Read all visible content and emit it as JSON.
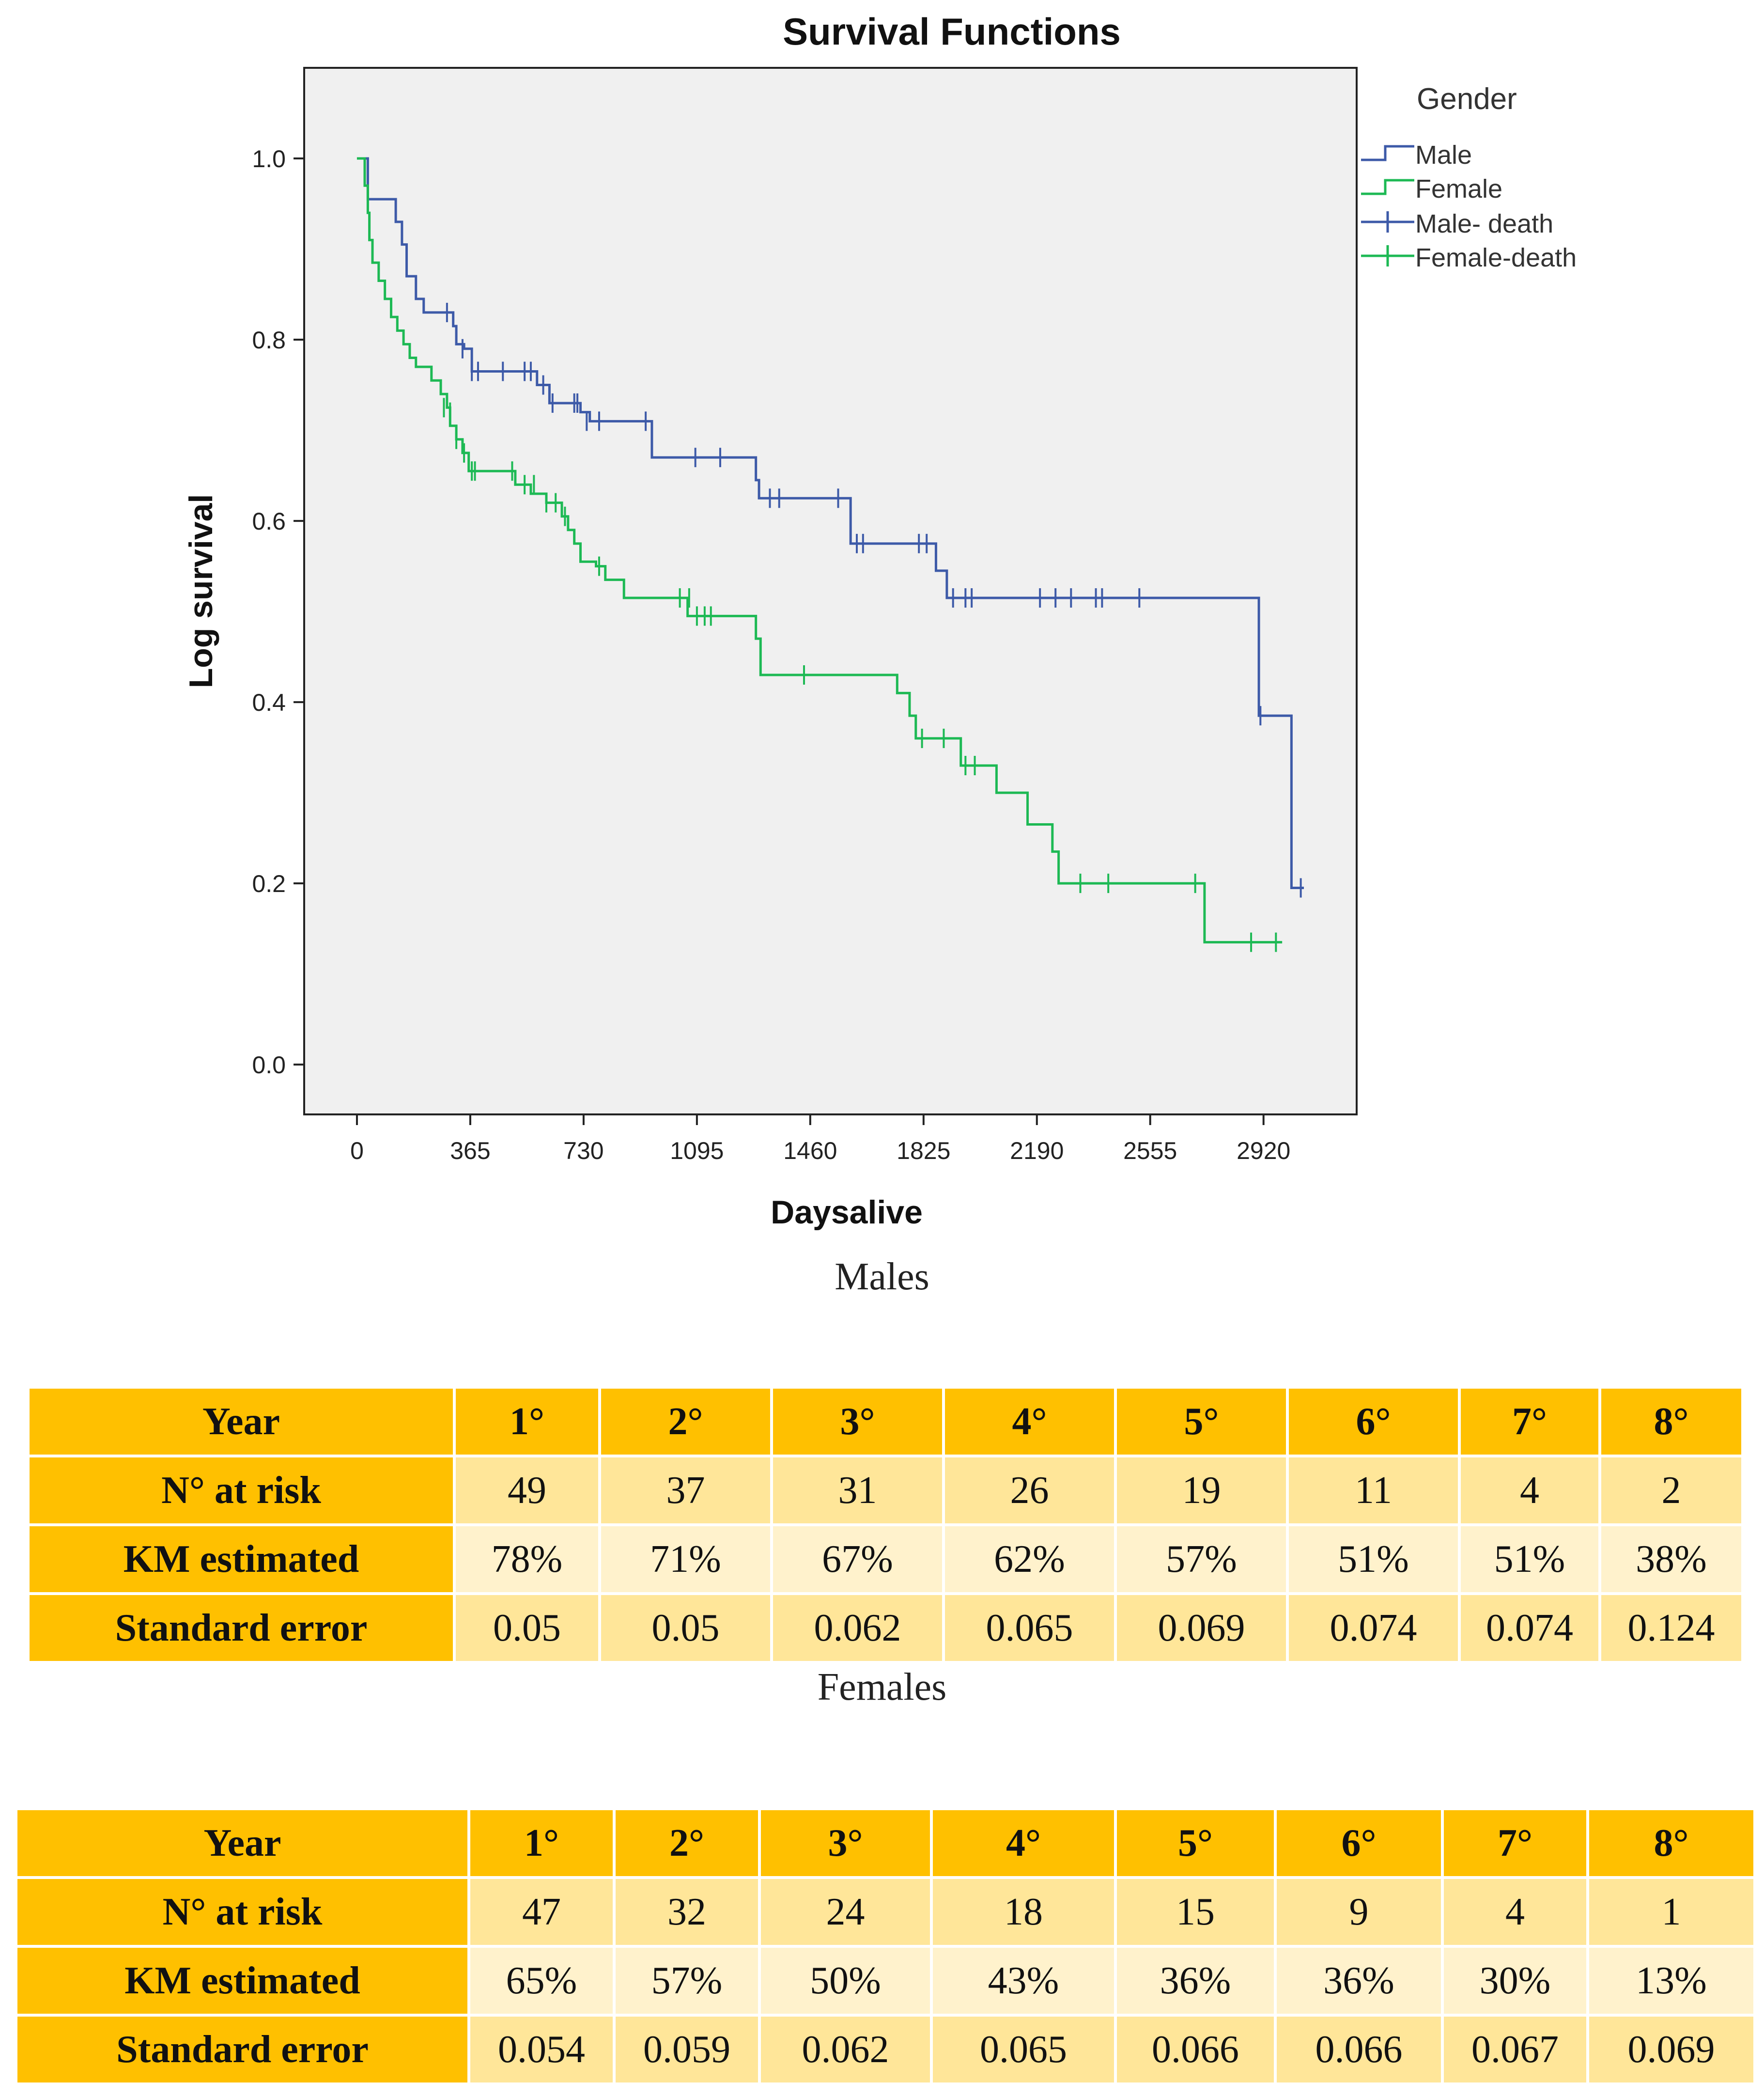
{
  "chart_data": {
    "type": "line",
    "title": "Survival Functions",
    "xlabel": "Daysalive",
    "ylabel": "Log survival",
    "xlim": [
      -170,
      3220
    ],
    "ylim": [
      -0.055,
      1.1
    ],
    "xticks": [
      0,
      365,
      730,
      1095,
      1460,
      1825,
      2190,
      2555,
      2920
    ],
    "yticks": [
      0.0,
      0.2,
      0.4,
      0.6,
      0.8,
      1.0
    ],
    "ytick_labels": [
      "0.0",
      "0.2",
      "0.4",
      "0.6",
      "0.8",
      "1.0"
    ],
    "legend": {
      "title": "Gender",
      "position": "right",
      "entries": [
        "Male",
        "Female",
        "Male- death",
        "Female-death"
      ]
    },
    "series": [
      {
        "name": "Male",
        "color": "#3d5aa8",
        "steps": [
          [
            0,
            1.0
          ],
          [
            35,
            0.955
          ],
          [
            125,
            0.93
          ],
          [
            145,
            0.905
          ],
          [
            160,
            0.87
          ],
          [
            190,
            0.845
          ],
          [
            215,
            0.83
          ],
          [
            290,
            0.83
          ],
          [
            310,
            0.815
          ],
          [
            320,
            0.795
          ],
          [
            345,
            0.79
          ],
          [
            370,
            0.765
          ],
          [
            560,
            0.765
          ],
          [
            580,
            0.75
          ],
          [
            620,
            0.73
          ],
          [
            720,
            0.72
          ],
          [
            750,
            0.71
          ],
          [
            930,
            0.71
          ],
          [
            950,
            0.67
          ],
          [
            1275,
            0.67
          ],
          [
            1285,
            0.645
          ],
          [
            1295,
            0.625
          ],
          [
            1570,
            0.625
          ],
          [
            1590,
            0.575
          ],
          [
            1840,
            0.575
          ],
          [
            1865,
            0.545
          ],
          [
            1900,
            0.515
          ],
          [
            2880,
            0.515
          ],
          [
            2905,
            0.385
          ],
          [
            3000,
            0.385
          ],
          [
            3010,
            0.195
          ],
          [
            3050,
            0.195
          ]
        ],
        "censored": [
          [
            290,
            0.83
          ],
          [
            340,
            0.79
          ],
          [
            370,
            0.765
          ],
          [
            390,
            0.765
          ],
          [
            470,
            0.765
          ],
          [
            540,
            0.765
          ],
          [
            560,
            0.765
          ],
          [
            600,
            0.75
          ],
          [
            630,
            0.73
          ],
          [
            700,
            0.73
          ],
          [
            710,
            0.73
          ],
          [
            740,
            0.71
          ],
          [
            780,
            0.71
          ],
          [
            930,
            0.71
          ],
          [
            1090,
            0.67
          ],
          [
            1170,
            0.67
          ],
          [
            1330,
            0.625
          ],
          [
            1360,
            0.625
          ],
          [
            1550,
            0.625
          ],
          [
            1610,
            0.575
          ],
          [
            1630,
            0.575
          ],
          [
            1810,
            0.575
          ],
          [
            1835,
            0.575
          ],
          [
            1920,
            0.515
          ],
          [
            1960,
            0.515
          ],
          [
            1980,
            0.515
          ],
          [
            2200,
            0.515
          ],
          [
            2250,
            0.515
          ],
          [
            2300,
            0.515
          ],
          [
            2380,
            0.515
          ],
          [
            2400,
            0.515
          ],
          [
            2520,
            0.515
          ],
          [
            2910,
            0.385
          ],
          [
            3040,
            0.195
          ]
        ]
      },
      {
        "name": "Female",
        "color": "#1db954",
        "steps": [
          [
            0,
            1.0
          ],
          [
            25,
            0.97
          ],
          [
            35,
            0.94
          ],
          [
            40,
            0.91
          ],
          [
            50,
            0.885
          ],
          [
            70,
            0.865
          ],
          [
            90,
            0.845
          ],
          [
            110,
            0.825
          ],
          [
            130,
            0.81
          ],
          [
            150,
            0.795
          ],
          [
            170,
            0.78
          ],
          [
            190,
            0.77
          ],
          [
            240,
            0.755
          ],
          [
            270,
            0.74
          ],
          [
            290,
            0.725
          ],
          [
            300,
            0.705
          ],
          [
            320,
            0.69
          ],
          [
            340,
            0.675
          ],
          [
            360,
            0.655
          ],
          [
            500,
            0.655
          ],
          [
            510,
            0.64
          ],
          [
            560,
            0.63
          ],
          [
            610,
            0.62
          ],
          [
            660,
            0.605
          ],
          [
            680,
            0.59
          ],
          [
            700,
            0.575
          ],
          [
            720,
            0.555
          ],
          [
            770,
            0.55
          ],
          [
            800,
            0.535
          ],
          [
            860,
            0.515
          ],
          [
            1050,
            0.515
          ],
          [
            1065,
            0.495
          ],
          [
            1260,
            0.495
          ],
          [
            1285,
            0.47
          ],
          [
            1300,
            0.43
          ],
          [
            1720,
            0.43
          ],
          [
            1740,
            0.41
          ],
          [
            1780,
            0.385
          ],
          [
            1800,
            0.36
          ],
          [
            1930,
            0.36
          ],
          [
            1945,
            0.33
          ],
          [
            2050,
            0.33
          ],
          [
            2060,
            0.3
          ],
          [
            2150,
            0.3
          ],
          [
            2160,
            0.265
          ],
          [
            2225,
            0.265
          ],
          [
            2240,
            0.235
          ],
          [
            2260,
            0.2
          ],
          [
            2720,
            0.2
          ],
          [
            2730,
            0.135
          ],
          [
            2980,
            0.135
          ]
        ],
        "censored": [
          [
            280,
            0.725
          ],
          [
            300,
            0.72
          ],
          [
            320,
            0.69
          ],
          [
            345,
            0.675
          ],
          [
            360,
            0.665
          ],
          [
            370,
            0.655
          ],
          [
            380,
            0.655
          ],
          [
            500,
            0.655
          ],
          [
            540,
            0.64
          ],
          [
            570,
            0.64
          ],
          [
            610,
            0.62
          ],
          [
            640,
            0.62
          ],
          [
            670,
            0.605
          ],
          [
            780,
            0.55
          ],
          [
            1040,
            0.515
          ],
          [
            1070,
            0.515
          ],
          [
            1095,
            0.495
          ],
          [
            1120,
            0.495
          ],
          [
            1140,
            0.495
          ],
          [
            1440,
            0.43
          ],
          [
            1820,
            0.36
          ],
          [
            1890,
            0.36
          ],
          [
            1960,
            0.33
          ],
          [
            1990,
            0.33
          ],
          [
            2330,
            0.2
          ],
          [
            2420,
            0.2
          ],
          [
            2700,
            0.2
          ],
          [
            2880,
            0.135
          ],
          [
            2960,
            0.135
          ]
        ]
      }
    ]
  },
  "captions": {
    "males": "Males",
    "females": "Females"
  },
  "tables": {
    "males": {
      "header": [
        "Year",
        "1°",
        "2°",
        "3°",
        "4°",
        "5°",
        "6°",
        "7°",
        "8°"
      ],
      "rows": [
        [
          "N° at risk",
          "49",
          "37",
          "31",
          "26",
          "19",
          "11",
          "4",
          "2"
        ],
        [
          "KM estimated",
          "78%",
          "71%",
          "67%",
          "62%",
          "57%",
          "51%",
          "51%",
          "38%"
        ],
        [
          "Standard error",
          "0.05",
          "0.05",
          "0.062",
          "0.065",
          "0.069",
          "0.074",
          "0.074",
          "0.124"
        ]
      ]
    },
    "females": {
      "header": [
        "Year",
        "1°",
        "2°",
        "3°",
        "4°",
        "5°",
        "6°",
        "7°",
        "8°"
      ],
      "rows": [
        [
          "N° at risk",
          "47",
          "32",
          "24",
          "18",
          "15",
          "9",
          "4",
          "1"
        ],
        [
          "KM estimated",
          "65%",
          "57%",
          "50%",
          "43%",
          "36%",
          "36%",
          "30%",
          "13%"
        ],
        [
          "Standard error",
          "0.054",
          "0.059",
          "0.062",
          "0.065",
          "0.066",
          "0.066",
          "0.067",
          "0.069"
        ]
      ]
    }
  }
}
